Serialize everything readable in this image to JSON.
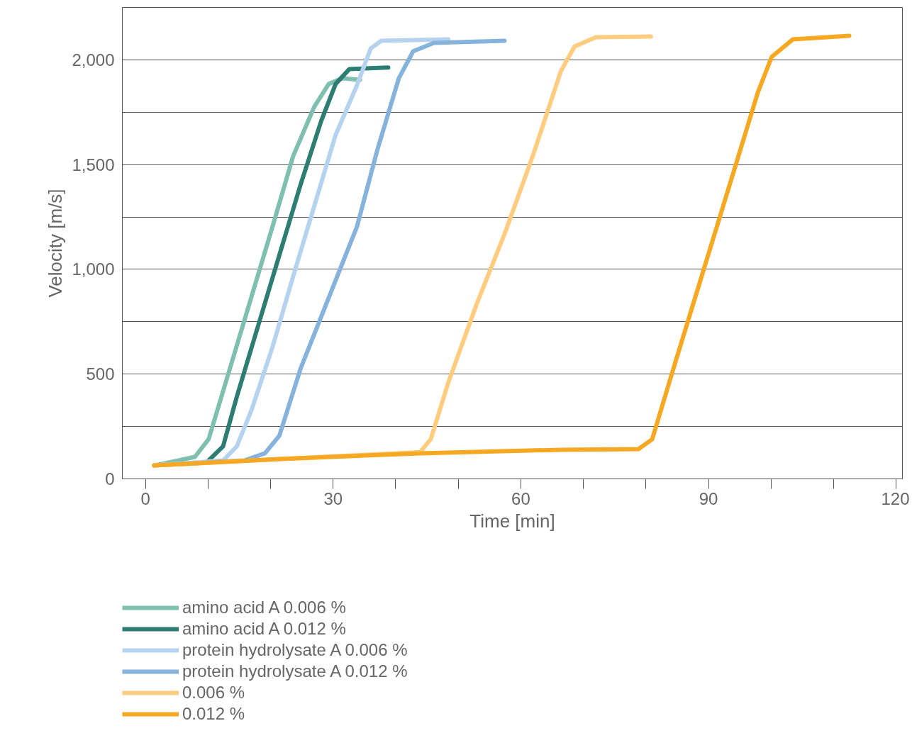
{
  "chart_data": {
    "type": "line",
    "xlabel": "Time [min]",
    "ylabel": "Velocity [m/s]",
    "xlim": [
      -3.7,
      121
    ],
    "ylim": [
      0,
      2250
    ],
    "xticks": [
      0,
      {
        "value": 10,
        "label": null
      },
      {
        "value": 20,
        "label": null
      },
      30,
      {
        "value": 40,
        "label": null
      },
      {
        "value": 50,
        "label": null
      },
      60,
      {
        "value": 70,
        "label": null
      },
      {
        "value": 80,
        "label": null
      },
      90,
      {
        "value": 100,
        "label": null
      },
      {
        "value": 110,
        "label": null
      },
      120
    ],
    "yticks": [
      {
        "value": 0,
        "label": "0"
      },
      {
        "value": 250,
        "label": null
      },
      {
        "value": 500,
        "label": "500"
      },
      {
        "value": 750,
        "label": null
      },
      {
        "value": 1000,
        "label": "1,000"
      },
      {
        "value": 1250,
        "label": null
      },
      {
        "value": 1500,
        "label": "1,500"
      },
      {
        "value": 1750,
        "label": null
      },
      {
        "value": 2000,
        "label": "2,000"
      }
    ],
    "grid": "y",
    "legend": "bottom",
    "marker": "none",
    "line_style": "solid",
    "series": [
      {
        "name": "amino acid A 0.006 %",
        "color": "#7fbfb0",
        "x": [
          1.4,
          7.9,
          10.1,
          13.5,
          16.9,
          20.3,
          23.6,
          27,
          29.3,
          31.5,
          34.3
        ],
        "values": [
          64,
          105,
          190,
          527,
          865,
          1203,
          1540,
          1777,
          1885,
          1912,
          1905
        ]
      },
      {
        "name": "amino acid A 0.012 %",
        "color": "#2e7d72",
        "x": [
          10.1,
          12.4,
          14.6,
          18,
          21.4,
          24.8,
          28.1,
          30.4,
          32.6,
          38.8
        ],
        "values": [
          88,
          155,
          392,
          730,
          1068,
          1405,
          1709,
          1885,
          1956,
          1963
        ]
      },
      {
        "name": "protein hydrolysate A 0.006 %",
        "color": "#b5d3ee",
        "x": [
          1.4,
          12.4,
          14.6,
          16.9,
          20.3,
          23.6,
          27,
          30.4,
          33.8,
          36,
          37.7,
          48.4
        ],
        "values": [
          64,
          88,
          155,
          324,
          628,
          966,
          1304,
          1642,
          1878,
          2054,
          2091,
          2098
        ]
      },
      {
        "name": "protein hydrolysate A 0.012 %",
        "color": "#86b3dc",
        "x": [
          1.4,
          15.8,
          19.1,
          21.4,
          24.8,
          29.3,
          33.8,
          37.1,
          40.5,
          42.8,
          46.1,
          57.4
        ],
        "values": [
          64,
          88,
          122,
          206,
          527,
          865,
          1203,
          1574,
          1912,
          2041,
          2081,
          2091
        ]
      },
      {
        "name": "0.006 %",
        "color": "#ffcc80",
        "x": [
          1.4,
          43.9,
          45.6,
          48.4,
          52.9,
          57.4,
          61.9,
          66.4,
          68.6,
          72,
          80.8
        ],
        "values": [
          64,
          128,
          189,
          459,
          831,
          1169,
          1540,
          1946,
          2064,
          2108,
          2111
        ]
      },
      {
        "name": "0.012 %",
        "color": "#f7a823",
        "x": [
          1.4,
          21.4,
          43.9,
          66.4,
          78.8,
          81,
          84.4,
          88.9,
          93.4,
          97.9,
          100.1,
          103.5,
          112.5
        ],
        "values": [
          64,
          95,
          122,
          139,
          142,
          189,
          527,
          966,
          1405,
          1845,
          2014,
          2098,
          2115
        ]
      }
    ]
  }
}
